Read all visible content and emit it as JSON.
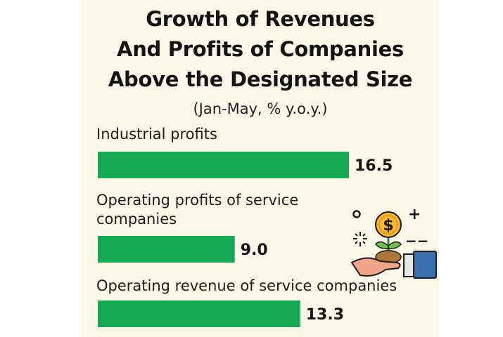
{
  "chart_data": {
    "type": "bar",
    "orientation": "horizontal",
    "title": "Growth of Revenues And Profits of Companies Above the Designated Size",
    "title_lines": [
      "Growth of Revenues",
      "And Profits of Companies",
      "Above the Designated Size"
    ],
    "subtitle": "(Jan-May, % y.o.y.)",
    "categories": [
      [
        "Industrial profits"
      ],
      [
        "Operating profits of service",
        "companies"
      ],
      [
        "Operating revenue of service companies"
      ]
    ],
    "values": [
      16.5,
      9.0,
      13.3
    ],
    "value_labels": [
      "16.5",
      "9.0",
      "13.3"
    ],
    "bar_color": "#14ab54",
    "background": "#fbf8ea",
    "xlim": [
      0,
      16.5
    ],
    "grid": false,
    "legend": "none"
  },
  "illustration": {
    "icon": "money-plant-hand-icon",
    "coin_symbol": "$",
    "plus_sign": "+",
    "minus_sign": "−−"
  }
}
